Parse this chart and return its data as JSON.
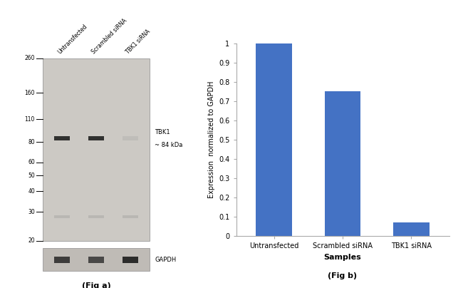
{
  "fig_title_a": "(Fig a)",
  "fig_title_b": "(Fig b)",
  "bar_categories": [
    "Untransfected",
    "Scrambled siRNA",
    "TBK1 siRNA"
  ],
  "bar_values": [
    1.0,
    0.75,
    0.07
  ],
  "bar_color": "#4472C4",
  "ylabel": "Expression  normalized to GAPDH",
  "xlabel": "Samples",
  "ylim": [
    0,
    1.0
  ],
  "yticks": [
    0,
    0.1,
    0.2,
    0.3,
    0.4,
    0.5,
    0.6,
    0.7,
    0.8,
    0.9,
    1.0
  ],
  "ytick_labels": [
    "0",
    "0.1",
    "0.2",
    "0.3",
    "0.4",
    "0.5",
    "0.6",
    "0.7",
    "0.8",
    "0.9",
    "1"
  ],
  "wb_labels_top": [
    "Untransfected",
    "Scrambled siRNA",
    "TBK1 siRNA"
  ],
  "wb_marker_label_line1": "TBK1",
  "wb_marker_label_line2": "~ 84 kDa",
  "wb_gapdh_label": "GAPDH",
  "wb_mw_markers": [
    260,
    160,
    110,
    80,
    60,
    50,
    40,
    30,
    20
  ],
  "background_color": "#ffffff",
  "axis_line_color": "#aaaaaa",
  "wb_main_bg": "#ccc9c4",
  "wb_gapdh_bg": "#bfbbb6",
  "wb_band_dark": "#1c1c1c",
  "wb_band_faint": "#888888",
  "wb_ns_band": "#777777"
}
